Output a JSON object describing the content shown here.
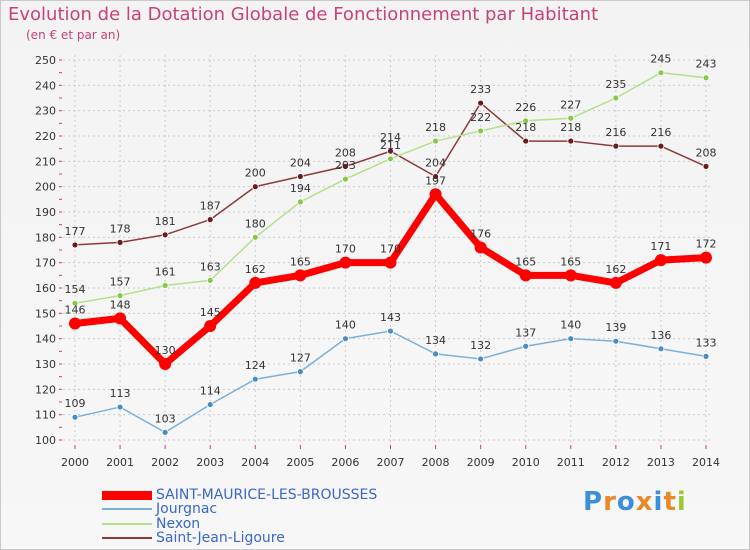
{
  "header": {
    "title": "Evolution de la Dotation Globale de Fonctionnement par Habitant",
    "subtitle": "(en € et par an)"
  },
  "colors": {
    "background": "#f5f5f5",
    "title": "#c8427a",
    "grid": "#cccccc",
    "axis_ticks": "#c8427a"
  },
  "brand": {
    "logo_text": "Proxiti"
  },
  "chart_data": {
    "type": "line",
    "title": "Evolution de la Dotation Globale de Fonctionnement par Habitant",
    "subtitle": "(en € et par an)",
    "xlabel": "",
    "ylabel": "",
    "x": [
      "2000",
      "2001",
      "2002",
      "2003",
      "2004",
      "2005",
      "2006",
      "2007",
      "2008",
      "2009",
      "2010",
      "2011",
      "2012",
      "2013",
      "2014"
    ],
    "ylim": [
      100,
      250
    ],
    "yticks": [
      100,
      110,
      120,
      130,
      140,
      150,
      160,
      170,
      180,
      190,
      200,
      210,
      220,
      230,
      240,
      250
    ],
    "grid": true,
    "legend_position": "bottom-left",
    "series": [
      {
        "name": "SAINT-MAURICE-LES-BROUSSES",
        "color": "#ff0000",
        "marker": "#ff0000",
        "width": 7,
        "values": [
          146,
          148,
          130,
          145,
          162,
          165,
          170,
          170,
          197,
          176,
          165,
          165,
          162,
          171,
          172
        ]
      },
      {
        "name": "Jourgnac",
        "color": "#7ab0da",
        "marker": "#4a8cc4",
        "width": 1.5,
        "values": [
          109,
          113,
          103,
          114,
          124,
          127,
          140,
          143,
          134,
          132,
          137,
          140,
          139,
          136,
          133
        ]
      },
      {
        "name": "Nexon",
        "color": "#b6e08a",
        "marker": "#86c84a",
        "width": 1.5,
        "values": [
          154,
          157,
          161,
          163,
          180,
          194,
          203,
          211,
          218,
          222,
          226,
          227,
          235,
          245,
          243
        ]
      },
      {
        "name": "Saint-Jean-Ligoure",
        "color": "#8c3a3a",
        "marker": "#6a1a1a",
        "width": 1.5,
        "values": [
          177,
          178,
          181,
          187,
          200,
          204,
          208,
          214,
          204,
          233,
          218,
          218,
          216,
          216,
          208
        ]
      }
    ],
    "point_labels": {
      "SAINT-MAURICE-LES-BROUSSES": [
        "146",
        "148",
        "130",
        "145",
        "162",
        "165",
        "170",
        "170",
        "197",
        "176",
        "165",
        "165",
        "162",
        "171",
        "172"
      ],
      "Jourgnac": [
        "109",
        "113",
        "103",
        "114",
        "124",
        "127",
        "140",
        "143",
        "134",
        "132",
        "137",
        "140",
        "139",
        "136",
        "133"
      ],
      "Nexon": [
        "154",
        "157",
        "161",
        "163",
        "180",
        "194",
        "203",
        "211",
        "218",
        "222",
        "226",
        "227",
        "235",
        "245",
        "243"
      ],
      "Saint-Jean-Ligoure": [
        "177",
        "178",
        "181",
        "187",
        "200",
        "204",
        "208",
        "214",
        "204",
        "233",
        "218",
        "218",
        "216",
        "216",
        "208"
      ]
    }
  }
}
